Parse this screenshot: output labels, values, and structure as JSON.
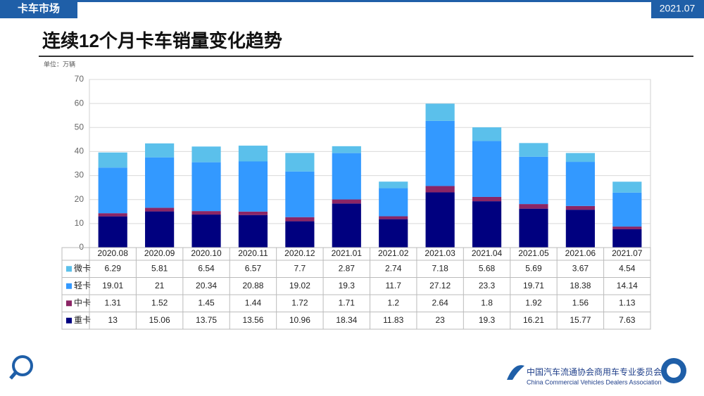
{
  "header": {
    "section": "卡车市场",
    "date": "2021.07"
  },
  "chart_data": {
    "type": "stacked-bar",
    "title": "连续12个月卡车销量变化趋势",
    "y_label": "单位：万辆",
    "categories": [
      "2020.08",
      "2020.09",
      "2020.10",
      "2020.11",
      "2020.12",
      "2021.01",
      "2021.02",
      "2021.03",
      "2021.04",
      "2021.05",
      "2021.06",
      "2021.07"
    ],
    "series": [
      {
        "name": "微卡",
        "color": "#5bc0eb",
        "values": [
          6.29,
          5.81,
          6.54,
          6.57,
          7.7,
          2.87,
          2.74,
          7.18,
          5.68,
          5.69,
          3.67,
          4.54
        ]
      },
      {
        "name": "轻卡",
        "color": "#3399ff",
        "values": [
          19.01,
          21,
          20.34,
          20.88,
          19.02,
          19.3,
          11.7,
          27.12,
          23.3,
          19.71,
          18.38,
          14.14
        ]
      },
      {
        "name": "中卡",
        "color": "#8b2565",
        "values": [
          1.31,
          1.52,
          1.45,
          1.44,
          1.72,
          1.71,
          1.2,
          2.64,
          1.8,
          1.92,
          1.56,
          1.13
        ]
      },
      {
        "name": "重卡",
        "color": "#00007f",
        "values": [
          13,
          15.06,
          13.75,
          13.56,
          10.96,
          18.34,
          11.83,
          23,
          19.3,
          16.21,
          15.77,
          7.63
        ]
      }
    ],
    "ylim": [
      0,
      70
    ],
    "yticks": [
      0,
      10,
      20,
      30,
      40,
      50,
      60,
      70
    ],
    "grid": true
  },
  "footer": {
    "org_cn": "中国汽车流通协会商用车专业委员会",
    "org_en": "China Commercial Vehicles Dealers Association"
  }
}
